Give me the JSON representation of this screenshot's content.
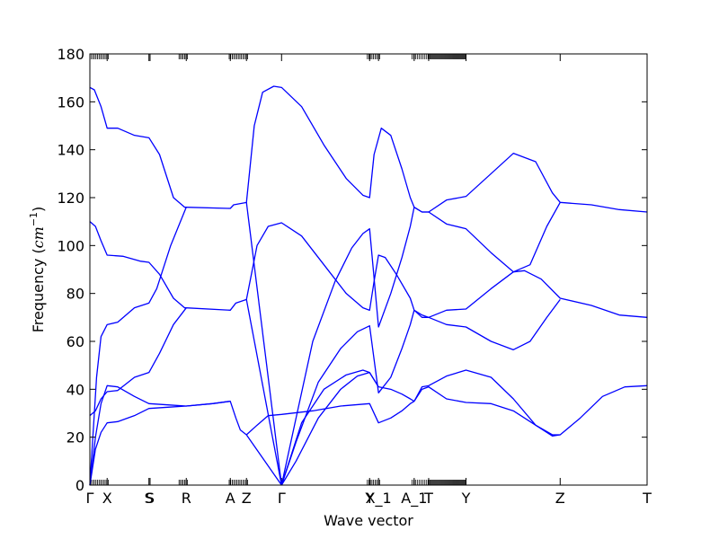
{
  "chart_data": {
    "type": "line",
    "title": "",
    "xlabel": "Wave vector",
    "ylabel_prefix": "Frequency (",
    "ylabel_unit": "cm",
    "ylabel_exp": "−1",
    "ylabel_suffix": ")",
    "ylim": [
      0,
      180
    ],
    "yticks": [
      0,
      20,
      40,
      60,
      80,
      100,
      120,
      140,
      160,
      180
    ],
    "xlim": [
      0,
      1
    ],
    "grid": false,
    "line_color": "#0000ff",
    "kpoints": [
      {
        "label": "Γ",
        "x": 0.0
      },
      {
        "label": "X",
        "x": 0.031
      },
      {
        "label": "S",
        "x": 0.106
      },
      {
        "label": "S",
        "x": 0.108
      },
      {
        "label": "R",
        "x": 0.173
      },
      {
        "label": "A",
        "x": 0.252
      },
      {
        "label": "Z",
        "x": 0.281
      },
      {
        "label": "Γ",
        "x": 0.344
      },
      {
        "label": "Y",
        "x": 0.502
      },
      {
        "label": "X_1",
        "x": 0.518
      },
      {
        "label": "A_1",
        "x": 0.582
      },
      {
        "label": "T",
        "x": 0.608
      },
      {
        "label": "Y",
        "x": 0.675
      },
      {
        "label": "Z",
        "x": 0.844
      },
      {
        "label": "T",
        "x": 1.0
      }
    ],
    "branches": [
      {
        "name": "",
        "points": [
          [
            0.0,
            166
          ],
          [
            0.008,
            165
          ],
          [
            0.02,
            158
          ],
          [
            0.031,
            149
          ],
          [
            0.05,
            149
          ],
          [
            0.08,
            146
          ],
          [
            0.106,
            145
          ],
          [
            0.125,
            138
          ],
          [
            0.15,
            120
          ],
          [
            0.17,
            116
          ],
          [
            0.173,
            116
          ],
          [
            0.252,
            115.5
          ],
          [
            0.258,
            117
          ],
          [
            0.281,
            118
          ],
          [
            0.295,
            150
          ],
          [
            0.31,
            164
          ],
          [
            0.33,
            166.5
          ],
          [
            0.344,
            166
          ],
          [
            0.38,
            158
          ],
          [
            0.42,
            142
          ],
          [
            0.46,
            128
          ],
          [
            0.49,
            121
          ],
          [
            0.502,
            120
          ],
          [
            0.51,
            138
          ],
          [
            0.523,
            149
          ],
          [
            0.54,
            146
          ],
          [
            0.56,
            132
          ],
          [
            0.575,
            120
          ],
          [
            0.582,
            116
          ],
          [
            0.596,
            114
          ],
          [
            0.608,
            114
          ],
          [
            0.64,
            119
          ],
          [
            0.675,
            120.5
          ],
          [
            0.72,
            130
          ],
          [
            0.76,
            138.5
          ],
          [
            0.8,
            135
          ],
          [
            0.83,
            122
          ],
          [
            0.844,
            118
          ],
          [
            0.9,
            117
          ],
          [
            0.95,
            115
          ],
          [
            1.0,
            114
          ]
        ]
      },
      {
        "name": "",
        "points": [
          [
            0.0,
            110
          ],
          [
            0.01,
            108
          ],
          [
            0.02,
            102
          ],
          [
            0.031,
            96
          ],
          [
            0.06,
            95.5
          ],
          [
            0.09,
            93.5
          ],
          [
            0.106,
            93
          ],
          [
            0.125,
            88
          ],
          [
            0.15,
            78
          ],
          [
            0.17,
            74
          ],
          [
            0.173,
            74
          ],
          [
            0.252,
            73
          ],
          [
            0.262,
            76
          ],
          [
            0.281,
            77.5
          ],
          [
            0.3,
            100
          ],
          [
            0.32,
            108
          ],
          [
            0.344,
            109.5
          ],
          [
            0.38,
            104
          ],
          [
            0.42,
            92
          ],
          [
            0.46,
            80
          ],
          [
            0.49,
            74
          ],
          [
            0.502,
            73
          ],
          [
            0.51,
            85
          ],
          [
            0.518,
            96
          ],
          [
            0.53,
            95
          ],
          [
            0.55,
            88
          ],
          [
            0.575,
            78
          ],
          [
            0.582,
            73
          ],
          [
            0.596,
            71
          ],
          [
            0.608,
            70
          ],
          [
            0.64,
            73
          ],
          [
            0.675,
            73.5
          ],
          [
            0.72,
            82
          ],
          [
            0.76,
            89
          ],
          [
            0.78,
            89.5
          ],
          [
            0.81,
            86
          ],
          [
            0.844,
            78
          ],
          [
            0.9,
            75
          ],
          [
            0.95,
            71
          ],
          [
            1.0,
            70
          ]
        ]
      },
      {
        "name": "",
        "points": [
          [
            0.0,
            29
          ],
          [
            0.01,
            31
          ],
          [
            0.02,
            36
          ],
          [
            0.031,
            39
          ],
          [
            0.05,
            39.5
          ],
          [
            0.08,
            45
          ],
          [
            0.106,
            47
          ],
          [
            0.125,
            55
          ],
          [
            0.15,
            67
          ],
          [
            0.173,
            74
          ]
        ]
      },
      {
        "name": "",
        "points": [
          [
            0.0,
            0
          ],
          [
            0.012,
            45
          ],
          [
            0.02,
            62
          ],
          [
            0.031,
            67
          ],
          [
            0.05,
            68
          ],
          [
            0.08,
            74
          ],
          [
            0.106,
            76
          ],
          [
            0.12,
            82
          ],
          [
            0.145,
            100
          ],
          [
            0.173,
            116
          ]
        ]
      },
      {
        "name": "",
        "points": [
          [
            0.0,
            0
          ],
          [
            0.01,
            15
          ],
          [
            0.02,
            22
          ],
          [
            0.031,
            26
          ],
          [
            0.05,
            26.5
          ],
          [
            0.08,
            29
          ],
          [
            0.106,
            32
          ],
          [
            0.14,
            32.5
          ],
          [
            0.173,
            33
          ],
          [
            0.22,
            34
          ],
          [
            0.252,
            35
          ],
          [
            0.262,
            28
          ],
          [
            0.27,
            23
          ],
          [
            0.281,
            21
          ]
        ]
      },
      {
        "name": "",
        "points": [
          [
            0.0,
            0
          ],
          [
            0.01,
            20
          ],
          [
            0.02,
            34
          ],
          [
            0.031,
            41.5
          ],
          [
            0.05,
            41
          ],
          [
            0.08,
            37
          ],
          [
            0.106,
            34
          ],
          [
            0.14,
            33.5
          ],
          [
            0.173,
            33
          ],
          [
            0.22,
            34
          ],
          [
            0.252,
            35
          ]
        ]
      },
      {
        "name": "",
        "points": [
          [
            0.281,
            118
          ],
          [
            0.344,
            0
          ]
        ]
      },
      {
        "name": "",
        "points": [
          [
            0.281,
            77.5
          ],
          [
            0.344,
            0
          ]
        ]
      },
      {
        "name": "",
        "points": [
          [
            0.281,
            21
          ],
          [
            0.344,
            0
          ]
        ]
      },
      {
        "name": "",
        "points": [
          [
            0.281,
            21
          ],
          [
            0.3,
            25
          ],
          [
            0.32,
            29
          ],
          [
            0.344,
            29.5
          ],
          [
            0.4,
            31
          ],
          [
            0.45,
            33
          ],
          [
            0.502,
            34
          ],
          [
            0.518,
            26
          ],
          [
            0.54,
            28
          ],
          [
            0.56,
            31
          ],
          [
            0.575,
            34
          ],
          [
            0.582,
            35
          ]
        ]
      },
      {
        "name": "",
        "points": [
          [
            0.344,
            0
          ],
          [
            0.37,
            10
          ],
          [
            0.41,
            28
          ],
          [
            0.45,
            40
          ],
          [
            0.48,
            45.5
          ],
          [
            0.502,
            47
          ],
          [
            0.518,
            41
          ],
          [
            0.54,
            40
          ],
          [
            0.56,
            38
          ],
          [
            0.575,
            36
          ],
          [
            0.582,
            35
          ]
        ]
      },
      {
        "name": "",
        "points": [
          [
            0.344,
            0
          ],
          [
            0.37,
            18
          ],
          [
            0.41,
            43
          ],
          [
            0.45,
            57
          ],
          [
            0.48,
            64
          ],
          [
            0.502,
            66.5
          ],
          [
            0.518,
            38.5
          ],
          [
            0.54,
            45
          ],
          [
            0.56,
            57
          ],
          [
            0.575,
            67
          ],
          [
            0.582,
            73
          ]
        ]
      },
      {
        "name": "",
        "points": [
          [
            0.344,
            0
          ],
          [
            0.37,
            28
          ],
          [
            0.4,
            60
          ],
          [
            0.44,
            85
          ],
          [
            0.47,
            99
          ],
          [
            0.49,
            105
          ],
          [
            0.502,
            107
          ],
          [
            0.518,
            66
          ],
          [
            0.54,
            80
          ],
          [
            0.56,
            95
          ],
          [
            0.575,
            108
          ],
          [
            0.582,
            116
          ]
        ]
      },
      {
        "name": "",
        "points": [
          [
            0.344,
            0
          ],
          [
            0.38,
            26
          ],
          [
            0.42,
            40
          ],
          [
            0.46,
            46
          ],
          [
            0.49,
            48
          ],
          [
            0.502,
            47
          ],
          [
            0.518,
            41
          ]
        ]
      },
      {
        "name": "",
        "points": [
          [
            0.582,
            35
          ],
          [
            0.596,
            41
          ],
          [
            0.608,
            41.5
          ],
          [
            0.64,
            45.5
          ],
          [
            0.675,
            48
          ],
          [
            0.72,
            45
          ],
          [
            0.76,
            36
          ],
          [
            0.8,
            25
          ],
          [
            0.83,
            20.5
          ],
          [
            0.844,
            21
          ],
          [
            0.88,
            28
          ],
          [
            0.92,
            37
          ],
          [
            0.96,
            41
          ],
          [
            1.0,
            41.5
          ]
        ]
      },
      {
        "name": "",
        "points": [
          [
            0.582,
            35
          ],
          [
            0.596,
            40
          ],
          [
            0.608,
            41
          ],
          [
            0.64,
            36
          ],
          [
            0.675,
            34.5
          ],
          [
            0.72,
            34
          ],
          [
            0.76,
            31
          ],
          [
            0.8,
            25
          ],
          [
            0.83,
            21
          ],
          [
            0.844,
            21
          ]
        ]
      },
      {
        "name": "",
        "points": [
          [
            0.582,
            73
          ],
          [
            0.596,
            70
          ],
          [
            0.608,
            70
          ],
          [
            0.64,
            67
          ],
          [
            0.675,
            66
          ],
          [
            0.72,
            60
          ],
          [
            0.76,
            56.5
          ],
          [
            0.79,
            60
          ],
          [
            0.82,
            70
          ],
          [
            0.844,
            77.5
          ]
        ]
      },
      {
        "name": "",
        "points": [
          [
            0.582,
            116
          ],
          [
            0.596,
            114
          ],
          [
            0.608,
            114
          ],
          [
            0.64,
            109
          ],
          [
            0.675,
            107
          ],
          [
            0.72,
            97
          ],
          [
            0.76,
            89
          ],
          [
            0.79,
            92
          ],
          [
            0.82,
            108
          ],
          [
            0.844,
            118
          ]
        ]
      }
    ]
  }
}
